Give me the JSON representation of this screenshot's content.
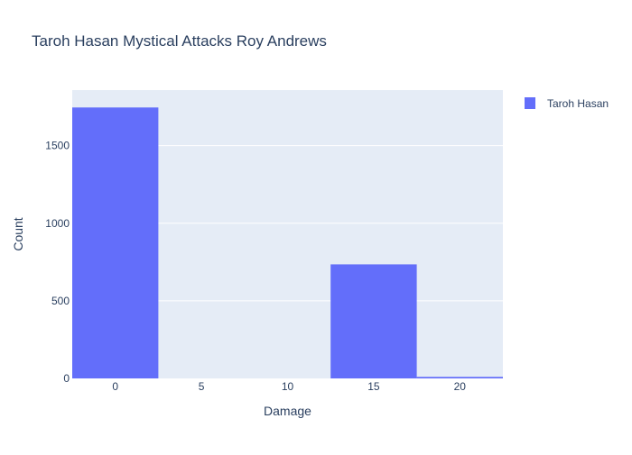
{
  "chart_data": {
    "type": "bar",
    "title": "Taroh Hasan Mystical Attacks Roy Andrews",
    "xlabel": "Damage",
    "ylabel": "Count",
    "x_ticks": [
      "0",
      "5",
      "10",
      "15",
      "20"
    ],
    "y_ticks": [
      "0",
      "500",
      "1000",
      "1500"
    ],
    "ylim": [
      0,
      1858
    ],
    "xlim": [
      -2.5,
      22.5
    ],
    "bin_width": 5,
    "categories": [
      0,
      5,
      10,
      15,
      20
    ],
    "series": [
      {
        "name": "Taroh Hasan",
        "values": [
          1746,
          0,
          0,
          735,
          10
        ]
      }
    ],
    "legend_position": "top-right",
    "grid": true,
    "colors": {
      "bar": "#636efa",
      "plot_bg": "#e5ecf6",
      "grid": "#ffffff",
      "text": "#2a3f5f"
    }
  }
}
